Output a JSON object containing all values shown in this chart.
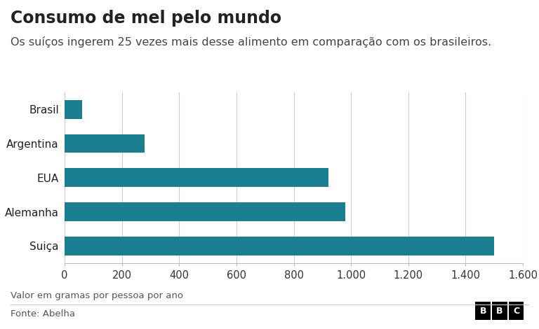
{
  "title": "Consumo de mel pelo mundo",
  "subtitle": "Os suíços ingerem 25 vezes mais desse alimento em comparação com os brasileiros.",
  "categories": [
    "Brasil",
    "Argentina",
    "EUA",
    "Alemanha",
    "Suiça"
  ],
  "values": [
    60,
    280,
    920,
    980,
    1500
  ],
  "bar_color": "#1a7f91",
  "xlim": [
    0,
    1600
  ],
  "xticks": [
    0,
    200,
    400,
    600,
    800,
    1000,
    1200,
    1400,
    1600
  ],
  "xtick_labels": [
    "0",
    "200",
    "400",
    "600",
    "800",
    "1.000",
    "1.200",
    "1.400",
    "1.600"
  ],
  "xlabel_note": "Valor em gramas por pessoa por ano",
  "source": "Fonte: Abelha",
  "bbc_label": "BBC",
  "background_color": "#ffffff",
  "title_fontsize": 17,
  "subtitle_fontsize": 11.5,
  "tick_fontsize": 10.5,
  "category_fontsize": 11,
  "note_fontsize": 9.5,
  "source_fontsize": 9.5,
  "grid_color": "#cccccc",
  "text_color": "#222222",
  "subtext_color": "#444444"
}
